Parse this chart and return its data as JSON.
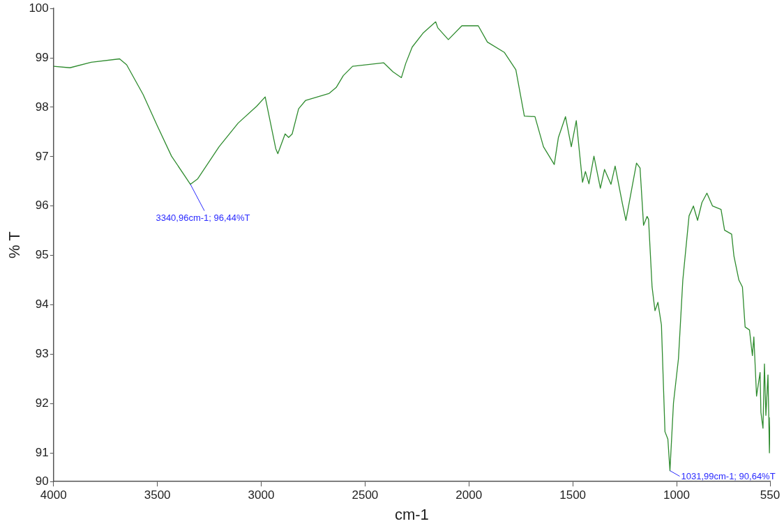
{
  "chart_data": {
    "type": "line",
    "xlabel": "cm-1",
    "ylabel": "% T",
    "xlim": [
      4000,
      550
    ],
    "xticks": [
      4000,
      3500,
      3000,
      2500,
      2000,
      1500,
      1000,
      550
    ],
    "ylim": [
      90.42,
      100
    ],
    "yticks": [
      {
        "value": 90.42,
        "label": "90"
      },
      91,
      92,
      93,
      94,
      95,
      96,
      97,
      98,
      99,
      100
    ],
    "grid": false,
    "legend": false,
    "marker": "none",
    "line_style": "solid",
    "series": [
      {
        "color": "#2e8b2e",
        "x": [
          4000,
          3921,
          3819,
          3682,
          3648,
          3569,
          3501,
          3432,
          3341,
          3306,
          3203,
          3111,
          3022,
          2981,
          2930,
          2920,
          2885,
          2868,
          2851,
          2820,
          2786,
          2673,
          2639,
          2605,
          2560,
          2410,
          2366,
          2325,
          2304,
          2273,
          2219,
          2160,
          2150,
          2099,
          2034,
          1955,
          1911,
          1829,
          1774,
          1733,
          1682,
          1641,
          1589,
          1569,
          1535,
          1507,
          1483,
          1453,
          1439,
          1422,
          1398,
          1367,
          1347,
          1316,
          1296,
          1261,
          1244,
          1193,
          1176,
          1159,
          1142,
          1135,
          1118,
          1104,
          1090,
          1073,
          1056,
          1042,
          1032,
          1015,
          991,
          970,
          940,
          919,
          899,
          878,
          854,
          827,
          786,
          769,
          735,
          724,
          700,
          683,
          670,
          649,
          635,
          628,
          615,
          598,
          594,
          584,
          577,
          570,
          560,
          553,
          550
        ],
        "values": [
          98.83,
          98.8,
          98.91,
          98.98,
          98.86,
          98.26,
          97.63,
          97.01,
          96.44,
          96.55,
          97.2,
          97.68,
          98.02,
          98.21,
          97.16,
          97.06,
          97.46,
          97.39,
          97.46,
          97.97,
          98.14,
          98.28,
          98.4,
          98.64,
          98.83,
          98.9,
          98.72,
          98.6,
          98.89,
          99.22,
          99.51,
          99.73,
          99.61,
          99.37,
          99.65,
          99.65,
          99.32,
          99.11,
          98.76,
          97.82,
          97.81,
          97.2,
          96.84,
          97.39,
          97.81,
          97.2,
          97.73,
          96.48,
          96.7,
          96.45,
          97.01,
          96.36,
          96.74,
          96.44,
          96.81,
          96.05,
          95.71,
          96.87,
          96.77,
          95.61,
          95.79,
          95.73,
          94.36,
          93.88,
          94.05,
          93.59,
          91.43,
          91.28,
          90.64,
          92.01,
          92.91,
          94.5,
          95.8,
          96.0,
          95.71,
          96.07,
          96.26,
          96.0,
          95.93,
          95.51,
          95.43,
          94.99,
          94.5,
          94.36,
          93.55,
          93.49,
          92.97,
          93.35,
          92.15,
          92.63,
          91.82,
          91.5,
          92.8,
          91.76,
          92.58,
          91.0,
          91.72
        ]
      }
    ],
    "annotations": [
      {
        "text": "3340,96cm-1; 96,44%T",
        "x": 3340.96,
        "y": 96.44
      },
      {
        "text": "1031,99cm-1; 90,64%T",
        "x": 1031.99,
        "y": 90.64
      }
    ]
  }
}
